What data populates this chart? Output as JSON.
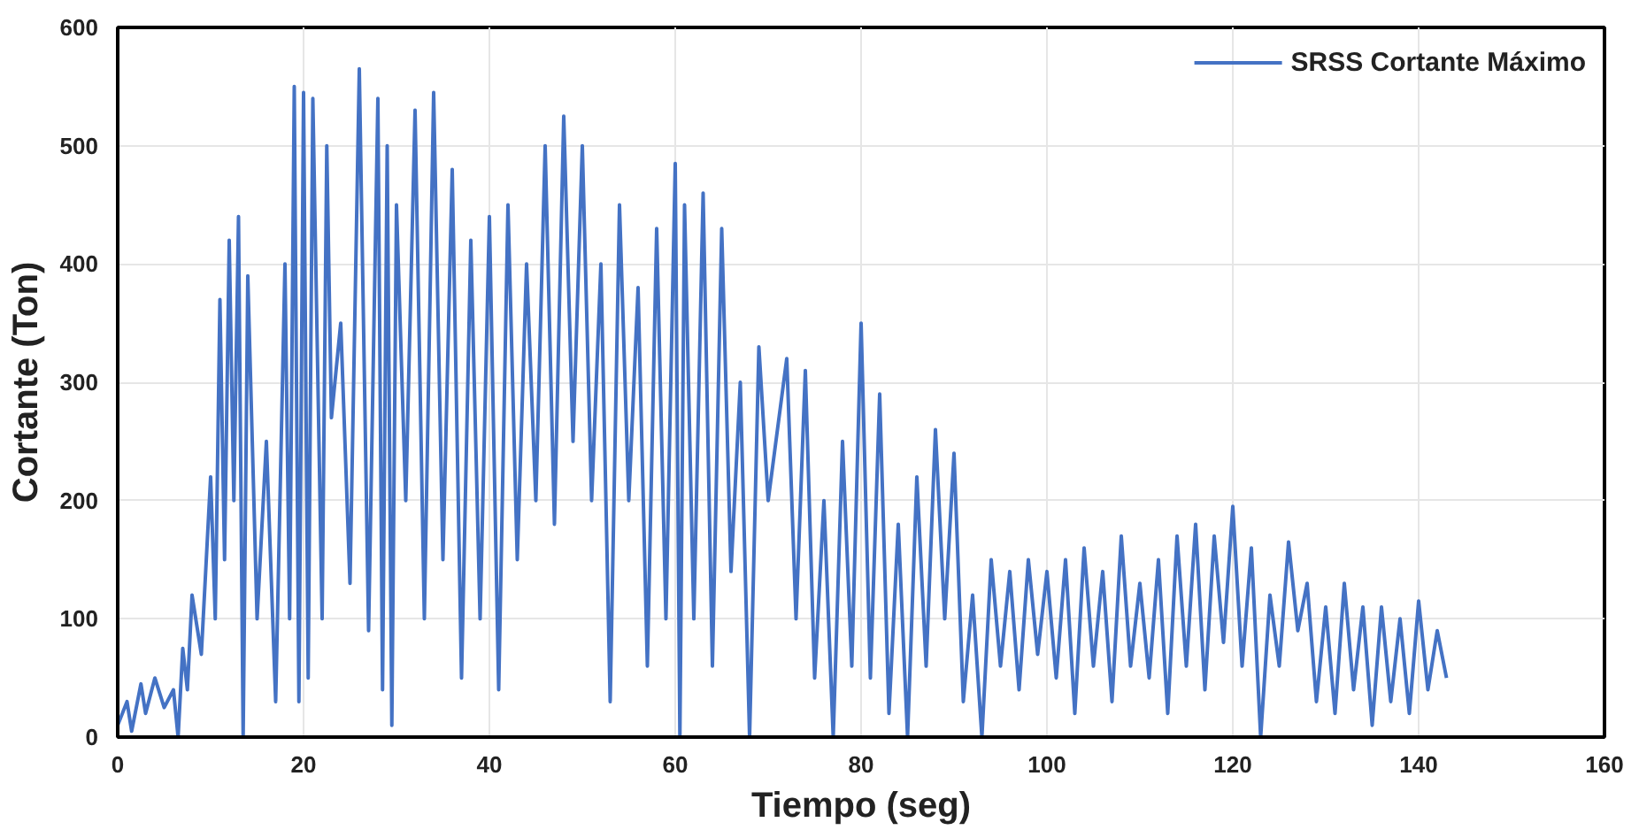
{
  "chart_data": {
    "type": "line",
    "xlabel": "Tiempo (seg)",
    "ylabel": "Cortante (Ton)",
    "xlim": [
      0,
      160
    ],
    "xticks": [
      0,
      20,
      40,
      60,
      80,
      100,
      120,
      140,
      160
    ],
    "ylim": [
      0,
      600
    ],
    "yticks": [
      0,
      100,
      200,
      300,
      400,
      500,
      600
    ],
    "grid": true,
    "legend": "top right",
    "line_style": "solid",
    "marker": "none",
    "series": [
      {
        "name": "SRSS Cortante Máximo",
        "color": "#4472c4",
        "x": [
          0,
          1,
          1.5,
          2.5,
          3,
          4,
          5,
          6,
          6.5,
          7,
          7.5,
          8,
          9,
          10,
          10.5,
          11,
          11.5,
          12,
          12.5,
          13,
          13.5,
          14,
          15,
          16,
          17,
          18,
          18.5,
          19,
          19.5,
          20,
          20.5,
          21,
          22,
          22.5,
          23,
          24,
          25,
          26,
          27,
          28,
          28.5,
          29,
          29.5,
          30,
          31,
          32,
          33,
          34,
          35,
          36,
          37,
          38,
          39,
          40,
          41,
          42,
          43,
          44,
          45,
          46,
          47,
          48,
          49,
          50,
          51,
          52,
          53,
          54,
          55,
          56,
          57,
          58,
          59,
          60,
          60.5,
          61,
          62,
          63,
          64,
          65,
          66,
          67,
          68,
          69,
          70,
          72,
          73,
          74,
          75,
          76,
          77,
          78,
          79,
          80,
          81,
          82,
          83,
          84,
          85,
          86,
          87,
          88,
          89,
          90,
          91,
          92,
          93,
          94,
          95,
          96,
          97,
          98,
          99,
          100,
          101,
          102,
          103,
          104,
          105,
          106,
          107,
          108,
          109,
          110,
          111,
          112,
          113,
          114,
          115,
          116,
          117,
          118,
          119,
          120,
          121,
          122,
          123,
          124,
          125,
          126,
          127,
          128,
          129,
          130,
          131,
          132,
          133,
          134,
          135,
          136,
          137,
          138,
          139,
          140,
          141,
          142,
          143
        ],
        "values": [
          10,
          30,
          5,
          45,
          20,
          50,
          25,
          40,
          0,
          75,
          40,
          120,
          70,
          220,
          100,
          370,
          150,
          420,
          200,
          440,
          0,
          390,
          100,
          250,
          30,
          400,
          100,
          550,
          30,
          545,
          50,
          540,
          100,
          500,
          270,
          350,
          130,
          565,
          90,
          540,
          40,
          500,
          10,
          450,
          200,
          530,
          100,
          545,
          150,
          480,
          50,
          420,
          100,
          440,
          40,
          450,
          150,
          400,
          200,
          500,
          180,
          525,
          250,
          500,
          200,
          400,
          30,
          450,
          200,
          380,
          60,
          430,
          100,
          485,
          0,
          450,
          100,
          460,
          60,
          430,
          140,
          300,
          0,
          330,
          200,
          320,
          100,
          310,
          50,
          200,
          0,
          250,
          60,
          350,
          50,
          290,
          20,
          180,
          0,
          220,
          60,
          260,
          100,
          240,
          30,
          120,
          0,
          150,
          60,
          140,
          40,
          150,
          70,
          140,
          50,
          150,
          20,
          160,
          60,
          140,
          30,
          170,
          60,
          130,
          50,
          150,
          20,
          170,
          60,
          180,
          40,
          170,
          80,
          195,
          60,
          160,
          0,
          120,
          60,
          165,
          90,
          130,
          30,
          110,
          20,
          130,
          40,
          110,
          10,
          110,
          30,
          100,
          20,
          115,
          40,
          90,
          50
        ]
      }
    ]
  }
}
